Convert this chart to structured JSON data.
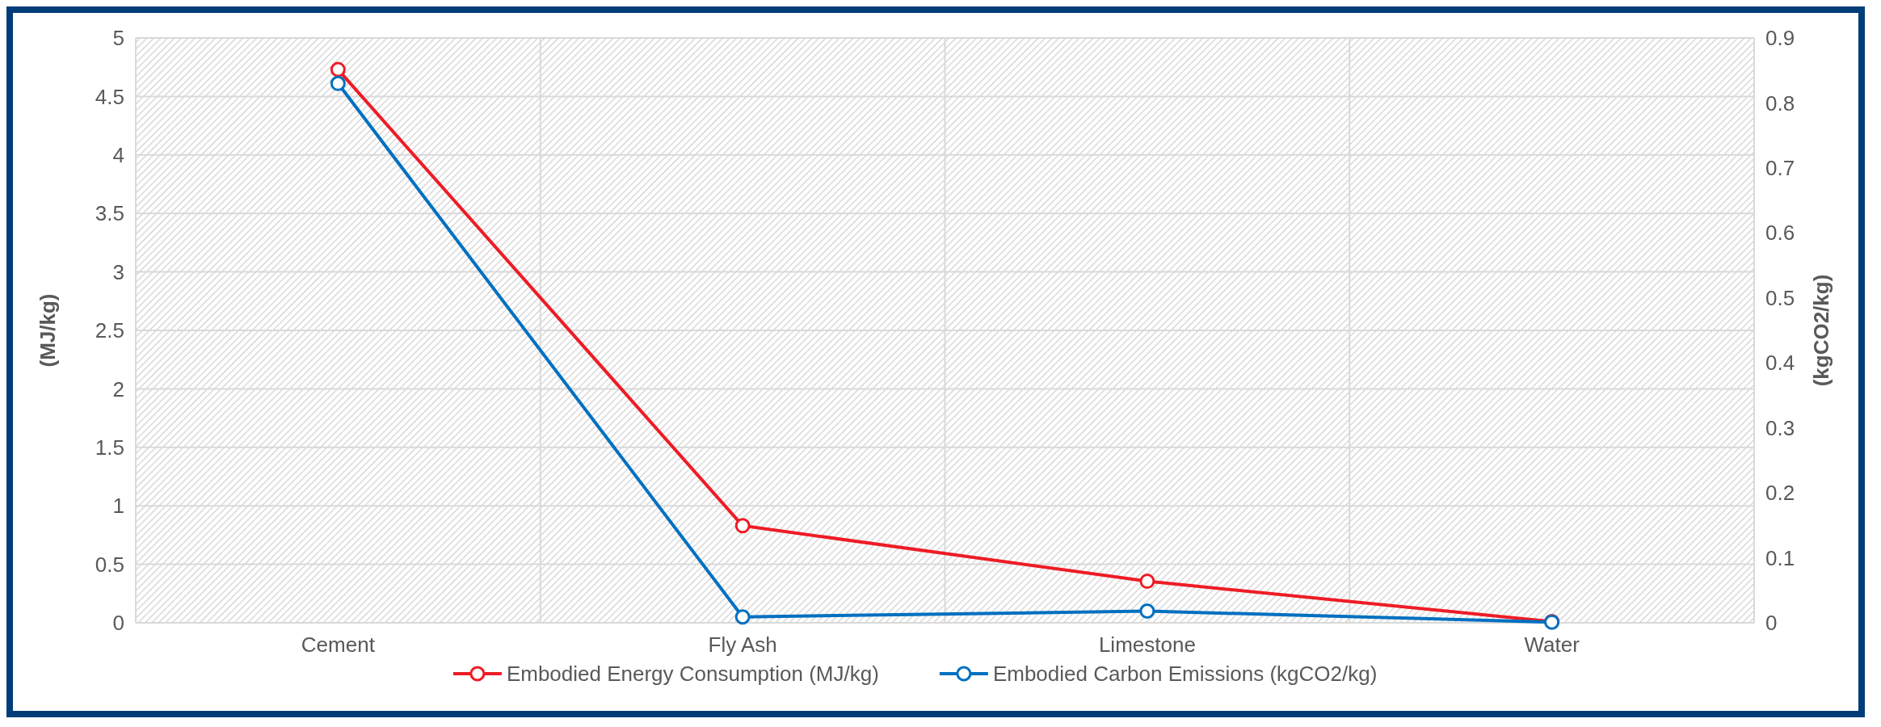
{
  "chart_data": {
    "type": "line",
    "categories": [
      "Cement",
      "Fly Ash",
      "Limestone",
      "Water"
    ],
    "ylabel": "(MJ/kg)",
    "y2label": "(kgCO2/kg)",
    "ylim": [
      0,
      5
    ],
    "yticks": [
      0,
      0.5,
      1,
      1.5,
      2,
      2.5,
      3,
      3.5,
      4,
      4.5,
      5
    ],
    "y2lim": [
      0,
      0.9
    ],
    "y2ticks": [
      0,
      0.1,
      0.2,
      0.3,
      0.4,
      0.5,
      0.6,
      0.7,
      0.8,
      0.9
    ],
    "series": [
      {
        "name": "Embodied Energy Consumption (MJ/kg)",
        "color": "#ee1c25",
        "values": [
          4.73,
          0.83,
          0.355,
          0.01
        ]
      },
      {
        "name": "Embodied Carbon Emissions (kgCO2/kg)",
        "color": "#0070c0",
        "axis": "y2",
        "values": [
          0.83,
          0.009,
          0.018,
          0.001
        ]
      }
    ],
    "grid": true,
    "legend": "bottom",
    "marker": "circle",
    "line_style": "solid"
  }
}
